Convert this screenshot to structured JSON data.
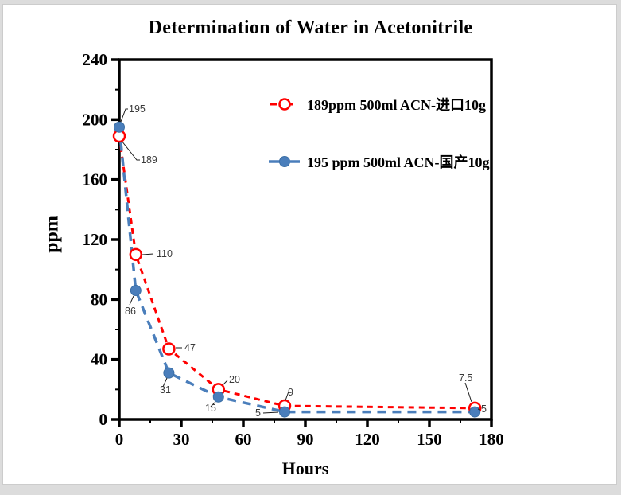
{
  "frame": {
    "outer_bg": "#dcdcdc",
    "card_bg": "#ffffff",
    "card_border": "#cccccc"
  },
  "chart_data": {
    "type": "line",
    "title": "Determination of Water in Acetonitrile",
    "xlabel": "Hours",
    "ylabel": "ppm",
    "xlim": [
      0,
      180
    ],
    "ylim": [
      0,
      240
    ],
    "x_major_ticks": [
      0,
      30,
      60,
      90,
      120,
      150,
      180
    ],
    "x_minor_ticks": [
      15,
      45,
      75,
      105,
      135,
      165
    ],
    "y_major_ticks": [
      0,
      40,
      80,
      120,
      160,
      200,
      240
    ],
    "y_minor_ticks": [
      20,
      60,
      100,
      140,
      180,
      220
    ],
    "grid": false,
    "axis_color": "#000000",
    "point_label_color": "#3a3a3a",
    "legend_position": "upper-right-inside",
    "series": [
      {
        "name": "189ppm  500ml ACN-进口10g",
        "color": "#ff0000",
        "line_style": "dashed",
        "marker": "open-circle",
        "x": [
          0,
          8,
          24,
          48,
          80,
          172
        ],
        "values": [
          189,
          110,
          47,
          20,
          9,
          7.5
        ],
        "point_labels": [
          "189",
          "110",
          "47",
          "20",
          "9",
          "7.5"
        ]
      },
      {
        "name": "195 ppm 500ml ACN-国产10g",
        "color": "#4a7ebb",
        "line_style": "dashed",
        "marker": "filled-circle",
        "x": [
          0,
          8,
          24,
          48,
          80,
          172
        ],
        "values": [
          195,
          86,
          31,
          15,
          5,
          5
        ],
        "point_labels": [
          "195",
          "86",
          "31",
          "15",
          "5",
          "5"
        ]
      }
    ]
  }
}
